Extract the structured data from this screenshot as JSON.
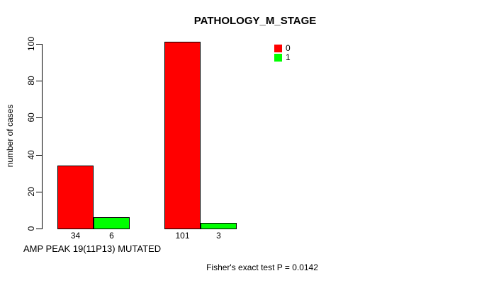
{
  "chart_data": {
    "type": "bar",
    "title": "PATHOLOGY_M_STAGE",
    "ylabel": "number of cases",
    "xlabel": "AMP PEAK 19(11P13) MUTATED",
    "footnote": "Fisher's exact test P = 0.0142",
    "ylim": [
      0,
      100
    ],
    "yticks": [
      0,
      20,
      40,
      60,
      80,
      100
    ],
    "grid": false,
    "legend_position": "top-right-inside",
    "background_color": "#ffffff",
    "axis_color": "#000000",
    "text_color": "#000000",
    "series": [
      {
        "name": "0",
        "color": "#ff0000",
        "values": [
          34,
          101
        ]
      },
      {
        "name": "1",
        "color": "#00ff00",
        "values": [
          6,
          3
        ]
      }
    ]
  }
}
